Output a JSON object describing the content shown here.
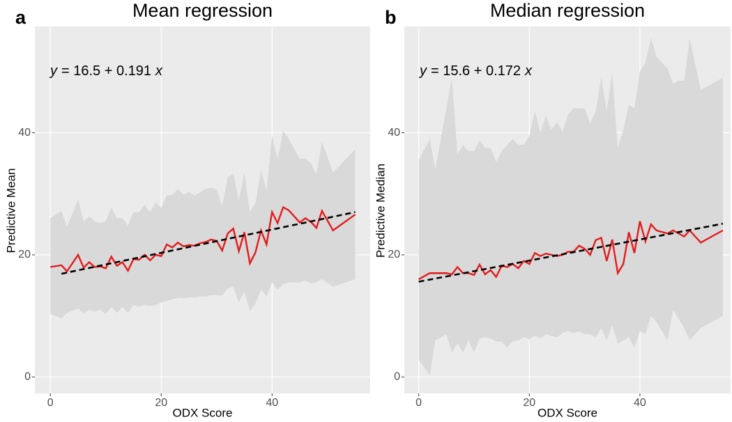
{
  "chart_data": [
    {
      "type": "line",
      "panel_label": "a",
      "title": "Mean regression",
      "annotation": [
        "y",
        "= 16.5 + 0.191",
        "x"
      ],
      "x_label": "ODX Score",
      "y_label": "Predictive Mean",
      "xlim": [
        -2.8,
        57.7
      ],
      "ylim": [
        -2.7,
        57.4
      ],
      "xticks": [
        0,
        20,
        40
      ],
      "yticks": [
        0,
        20,
        40
      ],
      "grid": true,
      "x": [
        0,
        2,
        3,
        5,
        6,
        7,
        8,
        9,
        10,
        11,
        12,
        13,
        14,
        15,
        16,
        17,
        18,
        19,
        20,
        21,
        22,
        23,
        24,
        25,
        26,
        27,
        28,
        29,
        30,
        31,
        32,
        33,
        34,
        35,
        36,
        37,
        38,
        39,
        40,
        41,
        42,
        43,
        45,
        46,
        47,
        48,
        49,
        51,
        55
      ],
      "band": {
        "color": "#d9d9d9",
        "upper": [
          26,
          27.2,
          24.6,
          29,
          25.5,
          26.3,
          25.5,
          25.2,
          25.5,
          27.8,
          26,
          26,
          24.8,
          27,
          27,
          28.2,
          27,
          28.5,
          27.7,
          29.7,
          29.8,
          30.8,
          29.8,
          30.3,
          29.7,
          30.2,
          30.8,
          31,
          30.7,
          28,
          32.7,
          33.3,
          29,
          33.5,
          27,
          28.5,
          33.8,
          30.5,
          39.5,
          35.6,
          40.3,
          39,
          35.7,
          35.8,
          35,
          33.2,
          38.5,
          33.5,
          37.3
        ],
        "lower": [
          10.3,
          9.6,
          10.5,
          11.2,
          10.4,
          11,
          10.7,
          11,
          10.3,
          11.5,
          10.5,
          11.5,
          10.5,
          11.8,
          11.5,
          11.8,
          11.6,
          11.8,
          12.2,
          12.5,
          12.7,
          13,
          12.9,
          13,
          13,
          13.2,
          13.2,
          13.4,
          13.4,
          13.3,
          14.5,
          14.8,
          12.2,
          14,
          10.8,
          12,
          14.3,
          13.2,
          15.5,
          14.3,
          15.2,
          15.5,
          15.5,
          15.8,
          15.3,
          15.5,
          16,
          14.8,
          16
        ]
      },
      "series": [
        {
          "color": "#e41a1c",
          "values": [
            18,
            18.3,
            17.3,
            20,
            17.9,
            18.8,
            18,
            18.1,
            17.8,
            19.7,
            18.2,
            18.8,
            17.4,
            19.3,
            19.2,
            20,
            19.1,
            20,
            19.8,
            21.7,
            21.2,
            22,
            21.4,
            21.6,
            21.5,
            21.9,
            22.1,
            22.5,
            22.3,
            20.7,
            23.5,
            24.3,
            20.6,
            23.7,
            18.6,
            20.4,
            24,
            21.7,
            27,
            25.2,
            27.8,
            27.3,
            25.3,
            26,
            25.4,
            24.4,
            27.2,
            24,
            26.6
          ]
        },
        {
          "color": "#000000",
          "dashed": true,
          "x": [
            2,
            55
          ],
          "values": [
            16.9,
            27.0
          ]
        }
      ]
    },
    {
      "type": "line",
      "panel_label": "b",
      "title": "Median regression",
      "annotation": [
        "y",
        "= 15.6 + 0.172",
        "x"
      ],
      "x_label": "ODX Score",
      "y_label": "Predictive Median",
      "xlim": [
        -2.6,
        56.4
      ],
      "ylim": [
        -2.7,
        57.4
      ],
      "xticks": [
        0,
        20,
        40
      ],
      "yticks": [
        0,
        20,
        40
      ],
      "grid": true,
      "x": [
        0,
        2,
        3,
        5,
        6,
        7,
        8,
        9,
        10,
        11,
        12,
        13,
        14,
        15,
        16,
        17,
        18,
        19,
        20,
        21,
        22,
        23,
        24,
        25,
        26,
        27,
        28,
        29,
        30,
        31,
        32,
        33,
        34,
        35,
        36,
        37,
        38,
        39,
        40,
        41,
        42,
        43,
        45,
        46,
        47,
        48,
        49,
        51,
        55
      ],
      "band": {
        "color": "#d9d9d9",
        "upper": [
          35.5,
          39,
          34,
          44,
          49,
          36.5,
          38,
          37,
          37,
          38.8,
          37.5,
          37.5,
          35.2,
          37,
          38,
          39,
          38,
          38,
          39.5,
          43.5,
          40,
          42.8,
          40.5,
          41.7,
          40.2,
          43,
          44,
          44,
          44,
          41.5,
          43.5,
          49,
          43.5,
          49.8,
          37.5,
          40.5,
          44.5,
          44,
          50,
          51.5,
          55.5,
          52.5,
          50.5,
          48,
          48.5,
          48.5,
          55.5,
          47,
          49
        ],
        "lower": [
          2.8,
          0.3,
          6,
          7,
          4,
          5.5,
          4,
          6,
          4,
          6.3,
          6.5,
          6.3,
          5.8,
          5.8,
          4.8,
          5.8,
          6,
          6.5,
          6.2,
          6.8,
          6.3,
          7,
          6.7,
          6.5,
          7.2,
          7.5,
          7.2,
          7.5,
          7,
          7,
          6.5,
          8,
          6,
          8.5,
          5.5,
          6,
          6.5,
          4.8,
          7.5,
          7,
          10,
          9,
          6,
          11,
          9.5,
          8,
          6,
          8,
          10
        ]
      },
      "series": [
        {
          "color": "#e41a1c",
          "values": [
            16,
            17,
            17,
            17,
            16.8,
            18,
            17,
            17,
            16.7,
            18.4,
            16.8,
            17.5,
            16.4,
            18.2,
            18,
            18.5,
            17.8,
            19,
            18.5,
            20.3,
            19.8,
            20.2,
            20,
            19.8,
            20,
            20.5,
            20.5,
            21.5,
            21,
            20,
            22.4,
            22.8,
            19,
            22.5,
            17,
            18.5,
            23.7,
            20.3,
            25.5,
            22.2,
            25,
            24,
            23.5,
            24,
            23.5,
            23,
            24,
            22,
            24
          ]
        },
        {
          "color": "#000000",
          "dashed": true,
          "x": [
            0,
            55
          ],
          "values": [
            15.6,
            25.1
          ]
        }
      ]
    }
  ]
}
